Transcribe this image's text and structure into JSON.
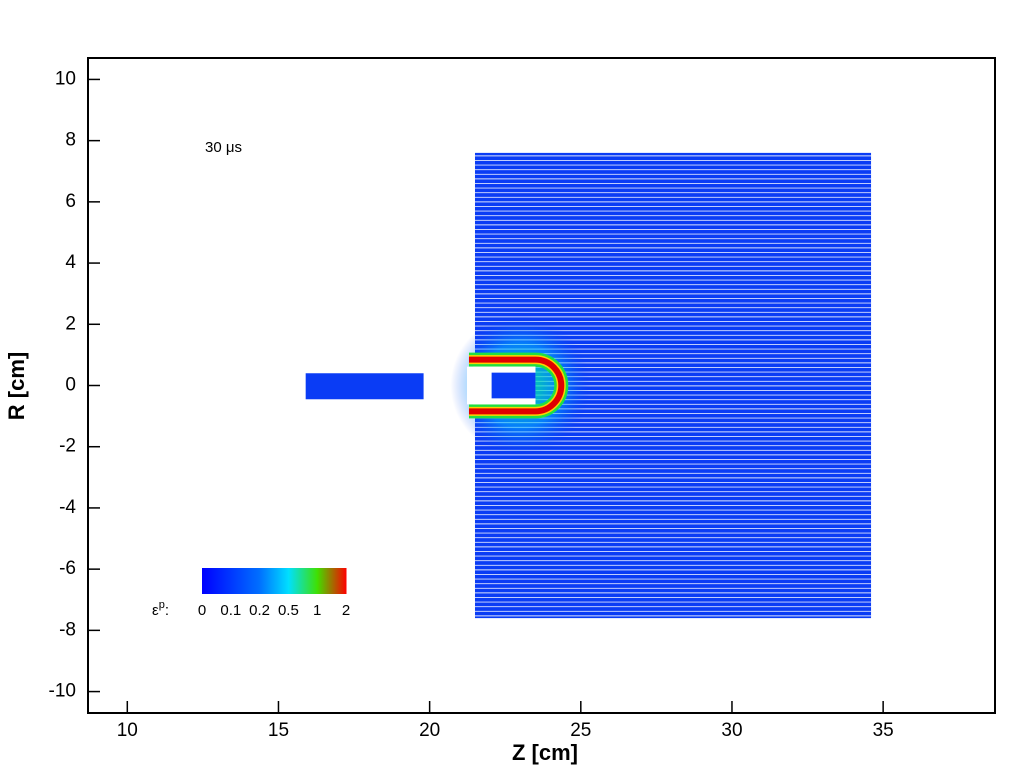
{
  "chart_data": {
    "type": "contour",
    "xlabel": "Z [cm]",
    "ylabel": "R [cm]",
    "annotation": "30 μs",
    "xlim": [
      8.7,
      38.7
    ],
    "ylim": [
      -10.7,
      10.7
    ],
    "xticks": [
      10,
      15,
      20,
      25,
      30,
      35
    ],
    "yticks": [
      -10,
      -8,
      -6,
      -4,
      -2,
      0,
      2,
      4,
      6,
      8,
      10
    ],
    "target": {
      "z": [
        21.5,
        34.6
      ],
      "r": [
        -7.6,
        7.6
      ],
      "color": "#0a3cf5"
    },
    "projectile": {
      "z": [
        15.9,
        19.8
      ],
      "r": [
        -0.45,
        0.4
      ],
      "color": "#0a3cf5"
    },
    "residual": {
      "z": [
        22.05,
        23.5
      ],
      "r": [
        -0.42,
        0.42
      ],
      "color": "#0a3cf5"
    },
    "colorbar": {
      "symbol": "ε",
      "superscript": "p",
      "suffix": ":",
      "levels": [
        0,
        0.1,
        0.2,
        0.5,
        1,
        2
      ],
      "colors": [
        "#0000ff",
        "#0038ff",
        "#0070ff",
        "#00e0ff",
        "#40e000",
        "#ff0000"
      ]
    }
  }
}
